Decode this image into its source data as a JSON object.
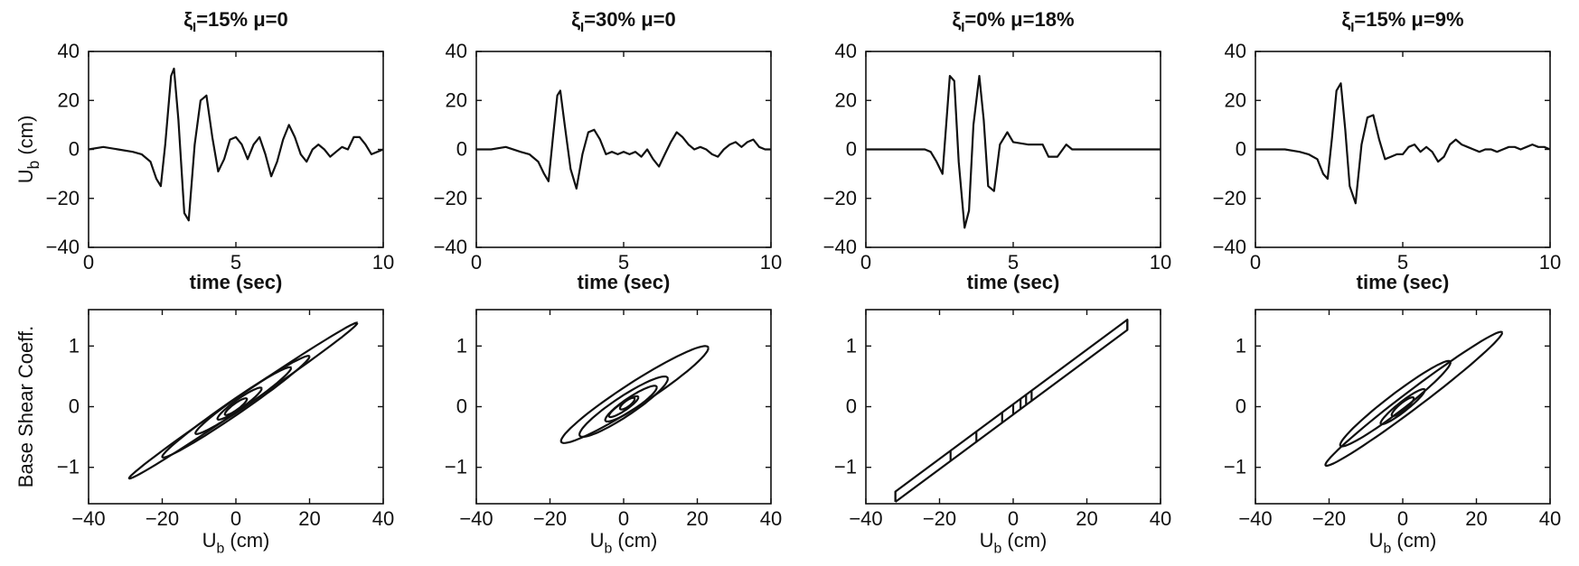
{
  "chart_data": [
    {
      "type": "line",
      "title": "ξI=15% μ=0",
      "xlabel": "time (sec)",
      "ylabel": "Ub (cm)",
      "xlim": [
        0,
        10
      ],
      "ylim": [
        -40,
        40
      ],
      "xticks": [
        "0",
        "5",
        "10"
      ],
      "yticks": [
        "40",
        "20",
        "0",
        "−20",
        "−40"
      ],
      "series": [
        {
          "x": [
            0,
            0.5,
            1,
            1.5,
            1.8,
            2.1,
            2.3,
            2.45,
            2.6,
            2.8,
            2.9,
            3.05,
            3.25,
            3.4,
            3.6,
            3.8,
            4.0,
            4.2,
            4.4,
            4.6,
            4.8,
            5.0,
            5.2,
            5.4,
            5.6,
            5.8,
            6.0,
            6.2,
            6.4,
            6.6,
            6.8,
            7.0,
            7.2,
            7.4,
            7.6,
            7.8,
            8.0,
            8.2,
            8.4,
            8.6,
            8.8,
            9.0,
            9.2,
            9.4,
            9.6,
            9.8,
            10
          ],
          "y": [
            0,
            1,
            0,
            -1,
            -2,
            -5,
            -12,
            -15,
            2,
            30,
            33,
            12,
            -26,
            -29,
            2,
            20,
            22,
            5,
            -9,
            -4,
            4,
            5,
            2,
            -4,
            2,
            5,
            -2,
            -11,
            -5,
            4,
            10,
            5,
            -2,
            -5,
            0,
            2,
            0,
            -3,
            -1,
            1,
            0,
            5,
            5,
            2,
            -2,
            -1,
            0
          ]
        }
      ]
    },
    {
      "type": "line",
      "title": "ξI=30% μ=0",
      "xlabel": "time (sec)",
      "xlim": [
        0,
        10
      ],
      "ylim": [
        -40,
        40
      ],
      "xticks": [
        "0",
        "5",
        "10"
      ],
      "yticks": [
        "40",
        "20",
        "0",
        "−20",
        "−40"
      ],
      "series": [
        {
          "x": [
            0,
            0.5,
            1,
            1.5,
            1.8,
            2.1,
            2.3,
            2.45,
            2.6,
            2.75,
            2.85,
            3.0,
            3.2,
            3.4,
            3.6,
            3.8,
            4.0,
            4.2,
            4.4,
            4.6,
            4.8,
            5.0,
            5.2,
            5.4,
            5.6,
            5.8,
            6.0,
            6.2,
            6.4,
            6.6,
            6.8,
            7.0,
            7.2,
            7.4,
            7.6,
            7.8,
            8.0,
            8.2,
            8.4,
            8.6,
            8.8,
            9.0,
            9.2,
            9.4,
            9.6,
            9.8,
            10
          ],
          "y": [
            0,
            0,
            1,
            -1,
            -2,
            -5,
            -10,
            -13,
            5,
            22,
            24,
            10,
            -8,
            -16,
            -2,
            7,
            8,
            4,
            -2,
            -1,
            -2,
            -1,
            -2,
            -1,
            -3,
            0,
            -4,
            -7,
            -2,
            3,
            7,
            5,
            2,
            0,
            1,
            0,
            -2,
            -3,
            0,
            2,
            3,
            1,
            3,
            4,
            1,
            0,
            0
          ]
        }
      ]
    },
    {
      "type": "line",
      "title": "ξI=0% μ=18%",
      "xlabel": "time (sec)",
      "xlim": [
        0,
        10
      ],
      "ylim": [
        -40,
        40
      ],
      "xticks": [
        "0",
        "5",
        "10"
      ],
      "yticks": [
        "40",
        "20",
        "0",
        "−20",
        "−40"
      ],
      "series": [
        {
          "x": [
            0,
            1,
            2.0,
            2.2,
            2.4,
            2.6,
            2.85,
            3.0,
            3.15,
            3.35,
            3.5,
            3.65,
            3.85,
            4.0,
            4.15,
            4.35,
            4.55,
            4.8,
            5.0,
            5.5,
            6.0,
            6.2,
            6.5,
            6.8,
            7.0,
            8,
            9,
            10
          ],
          "y": [
            0,
            0,
            0,
            -1,
            -5,
            -10,
            30,
            28,
            -5,
            -32,
            -25,
            10,
            30,
            12,
            -15,
            -17,
            2,
            7,
            3,
            2,
            2,
            -3,
            -3,
            2,
            0,
            0,
            0,
            0
          ]
        }
      ]
    },
    {
      "type": "line",
      "title": "ξI=15% μ=9%",
      "xlabel": "time (sec)",
      "xlim": [
        0,
        10
      ],
      "ylim": [
        -40,
        40
      ],
      "xticks": [
        "0",
        "5",
        "10"
      ],
      "yticks": [
        "40",
        "20",
        "0",
        "−20",
        "−40"
      ],
      "series": [
        {
          "x": [
            0,
            0.5,
            1,
            1.5,
            1.8,
            2.1,
            2.3,
            2.45,
            2.6,
            2.75,
            2.9,
            3.05,
            3.2,
            3.4,
            3.6,
            3.8,
            4.0,
            4.2,
            4.4,
            4.6,
            4.8,
            5.0,
            5.2,
            5.4,
            5.6,
            5.8,
            6.0,
            6.2,
            6.4,
            6.6,
            6.8,
            7.0,
            7.2,
            7.4,
            7.6,
            7.8,
            8.0,
            8.2,
            8.4,
            8.6,
            8.8,
            9.0,
            9.2,
            9.4,
            9.6,
            9.8,
            10
          ],
          "y": [
            0,
            0,
            0,
            -1,
            -2,
            -4,
            -10,
            -12,
            5,
            24,
            27,
            8,
            -15,
            -22,
            2,
            13,
            14,
            4,
            -4,
            -3,
            -2,
            -2,
            1,
            2,
            -1,
            1,
            -1,
            -5,
            -3,
            2,
            4,
            2,
            1,
            0,
            -1,
            0,
            0,
            -1,
            0,
            1,
            1,
            0,
            1,
            2,
            1,
            1,
            0
          ]
        }
      ]
    },
    {
      "type": "line",
      "ylabel": "Base Shear Coeff.",
      "xlabel": "Ub (cm)",
      "xlim": [
        -40,
        40
      ],
      "ylim": [
        -1.6,
        1.6
      ],
      "xticks": [
        "−40",
        "−20",
        "0",
        "20",
        "40"
      ],
      "yticks": [
        "1",
        "0",
        "−1"
      ],
      "loops": [
        {
          "cx": 2,
          "cy": 0.1,
          "a": 31,
          "b": 2.8,
          "tilt": 0.0413
        },
        {
          "cx": 0,
          "cy": 0.0,
          "a": 20,
          "b": 3.5,
          "tilt": 0.0413
        },
        {
          "cx": 2,
          "cy": 0.1,
          "a": 13,
          "b": 3.0,
          "tilt": 0.0413
        },
        {
          "cx": 1,
          "cy": 0.05,
          "a": 6,
          "b": 2.2,
          "tilt": 0.0413
        },
        {
          "cx": 0,
          "cy": 0.0,
          "a": 3,
          "b": 1.5,
          "tilt": 0.0413
        }
      ]
    },
    {
      "type": "line",
      "xlabel": "Ub (cm)",
      "xlim": [
        -40,
        40
      ],
      "ylim": [
        -1.6,
        1.6
      ],
      "xticks": [
        "−40",
        "−20",
        "0",
        "20",
        "40"
      ],
      "yticks": [
        "1",
        "0",
        "−1"
      ],
      "loops": [
        {
          "cx": 3,
          "cy": 0.2,
          "a": 20,
          "b": 6.0,
          "tilt": 0.0383
        },
        {
          "cx": 0,
          "cy": 0.0,
          "a": 12,
          "b": 5.0,
          "tilt": 0.0383
        },
        {
          "cx": 2,
          "cy": 0.05,
          "a": 7,
          "b": 3.2,
          "tilt": 0.0383
        },
        {
          "cx": 0,
          "cy": 0.0,
          "a": 4,
          "b": 2.0,
          "tilt": 0.0383
        },
        {
          "cx": 1,
          "cy": 0.05,
          "a": 2,
          "b": 1.5,
          "tilt": 0.0383
        }
      ]
    },
    {
      "type": "line",
      "xlabel": "Ub (cm)",
      "xlim": [
        -40,
        40
      ],
      "ylim": [
        -1.6,
        1.6
      ],
      "xticks": [
        "−40",
        "−20",
        "0",
        "20",
        "40"
      ],
      "yticks": [
        "1",
        "0",
        "−1"
      ],
      "parallelogram": {
        "u": [
          -32,
          31
        ],
        "slope": 0.045,
        "upper": 0.04,
        "lower": -0.13
      },
      "vlines": [
        -32,
        -17,
        -10,
        -3,
        0,
        2,
        3.5,
        5,
        31
      ]
    },
    {
      "type": "line",
      "xlabel": "Ub (cm)",
      "xlim": [
        -40,
        40
      ],
      "ylim": [
        -1.6,
        1.6
      ],
      "xticks": [
        "−40",
        "−20",
        "0",
        "20",
        "40"
      ],
      "yticks": [
        "1",
        "0",
        "−1"
      ],
      "loops": [
        {
          "cx": 3,
          "cy": 0.13,
          "a": 24,
          "b": 4.0,
          "tilt": 0.0454
        },
        {
          "cx": -2,
          "cy": 0.05,
          "a": 15,
          "b": 4.0,
          "tilt": 0.0454
        },
        {
          "cx": 0,
          "cy": 0.0,
          "a": 6,
          "b": 2.2,
          "tilt": 0.0454
        },
        {
          "cx": 0,
          "cy": 0.0,
          "a": 3,
          "b": 1.6,
          "tilt": 0.0454
        }
      ]
    }
  ]
}
